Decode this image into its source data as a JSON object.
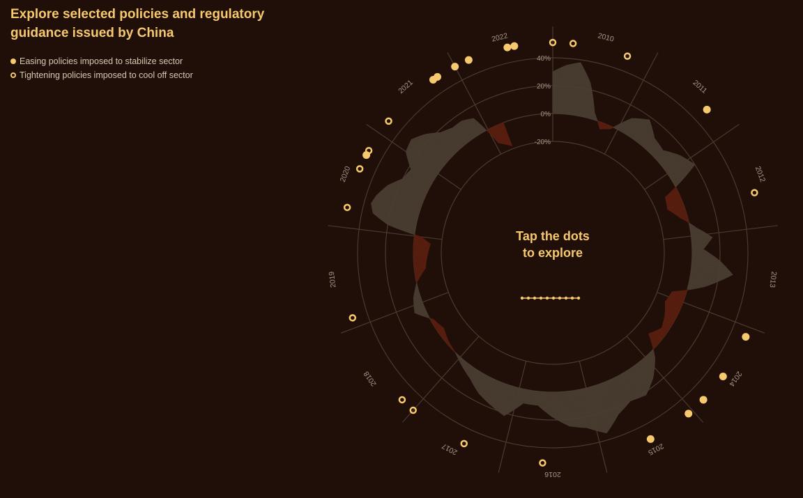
{
  "title": "Explore selected policies and regulatory guidance issued by China",
  "legend": {
    "easing": "Easing policies imposed to stabilize sector",
    "tightening": "Tightening policies imposed to cool off sector"
  },
  "center": {
    "line1": "Tap the dots",
    "line2": "to explore"
  },
  "colors": {
    "background": "#1f0f08",
    "accent": "#f7c96e",
    "positive_area": "#4a3e32",
    "negative_area": "#5a1f10",
    "grid": "#4a3a30",
    "label": "#a89888"
  },
  "chart_data": {
    "type": "area",
    "layout": "radial",
    "x_start": 2010.0,
    "x_end": 2023.0,
    "years": [
      "2010",
      "2011",
      "2012",
      "2013",
      "2014",
      "2015",
      "2016",
      "2017",
      "2018",
      "2019",
      "2020",
      "2021",
      "2022"
    ],
    "radial_ticks": [
      "40%",
      "20%",
      "0%",
      "-20%"
    ],
    "radial_tick_values": [
      40,
      20,
      0,
      -20
    ],
    "ylim": [
      -20,
      40
    ],
    "series": [
      {
        "t": [
          2010.0,
          2010.15,
          2010.3,
          2010.45,
          2010.6,
          2010.75,
          2010.9,
          2011.1,
          2011.3,
          2011.5,
          2011.7,
          2011.9,
          2012.1,
          2012.3,
          2012.5,
          2012.7,
          2012.9,
          2013.05,
          2013.2,
          2013.35,
          2013.5,
          2013.7,
          2013.9,
          2014.1,
          2014.3,
          2014.5,
          2014.7,
          2014.9,
          2015.1,
          2015.3,
          2015.5,
          2015.7,
          2015.9,
          2016.1,
          2016.3,
          2016.5,
          2016.7,
          2016.9,
          2017.1,
          2017.3,
          2017.5,
          2017.7,
          2017.9,
          2018.1,
          2018.3,
          2018.5,
          2018.7,
          2018.9,
          2019.1,
          2019.3,
          2019.5,
          2019.7,
          2019.9,
          2020.0,
          2020.1,
          2020.2,
          2020.3,
          2020.4,
          2020.55,
          2020.7,
          2020.85,
          2021.0,
          2021.15,
          2021.3,
          2021.45,
          2021.6,
          2021.75,
          2021.9,
          2022.05,
          2022.15,
          2022.25
        ],
        "values": [
          30,
          35,
          38,
          25,
          5,
          -5,
          -2,
          12,
          18,
          10,
          8,
          15,
          20,
          -10,
          -12,
          -5,
          5,
          15,
          8,
          20,
          30,
          12,
          -10,
          -12,
          -8,
          -5,
          -10,
          5,
          15,
          22,
          20,
          25,
          35,
          28,
          25,
          18,
          10,
          10,
          22,
          18,
          14,
          8,
          4,
          0,
          -2,
          -5,
          -2,
          8,
          5,
          0,
          -8,
          -10,
          -12,
          -5,
          20,
          32,
          35,
          33,
          28,
          20,
          18,
          28,
          30,
          25,
          18,
          15,
          15,
          12,
          -12,
          -15,
          -18
        ]
      }
    ],
    "policies": [
      {
        "year": 2010.0,
        "kind": "tightening"
      },
      {
        "year": 2010.2,
        "kind": "tightening"
      },
      {
        "year": 2010.75,
        "kind": "tightening"
      },
      {
        "year": 2011.7,
        "kind": "easing"
      },
      {
        "year": 2012.65,
        "kind": "tightening"
      },
      {
        "year": 2014.1,
        "kind": "easing"
      },
      {
        "year": 2014.55,
        "kind": "easing"
      },
      {
        "year": 2014.85,
        "kind": "easing"
      },
      {
        "year": 2015.05,
        "kind": "easing"
      },
      {
        "year": 2015.5,
        "kind": "easing"
      },
      {
        "year": 2016.6,
        "kind": "tightening"
      },
      {
        "year": 2017.4,
        "kind": "tightening"
      },
      {
        "year": 2018.0,
        "kind": "tightening"
      },
      {
        "year": 2018.15,
        "kind": "tightening"
      },
      {
        "year": 2019.1,
        "kind": "tightening"
      },
      {
        "year": 2020.2,
        "kind": "tightening"
      },
      {
        "year": 2020.6,
        "kind": "tightening"
      },
      {
        "year": 2020.75,
        "kind": "easing"
      },
      {
        "year": 2020.8,
        "kind": "tightening"
      },
      {
        "year": 2021.15,
        "kind": "tightening"
      },
      {
        "year": 2021.75,
        "kind": "easing"
      },
      {
        "year": 2021.8,
        "kind": "easing"
      },
      {
        "year": 2022.0,
        "kind": "easing"
      },
      {
        "year": 2022.15,
        "kind": "easing"
      },
      {
        "year": 2022.55,
        "kind": "easing"
      },
      {
        "year": 2022.62,
        "kind": "easing"
      }
    ]
  }
}
